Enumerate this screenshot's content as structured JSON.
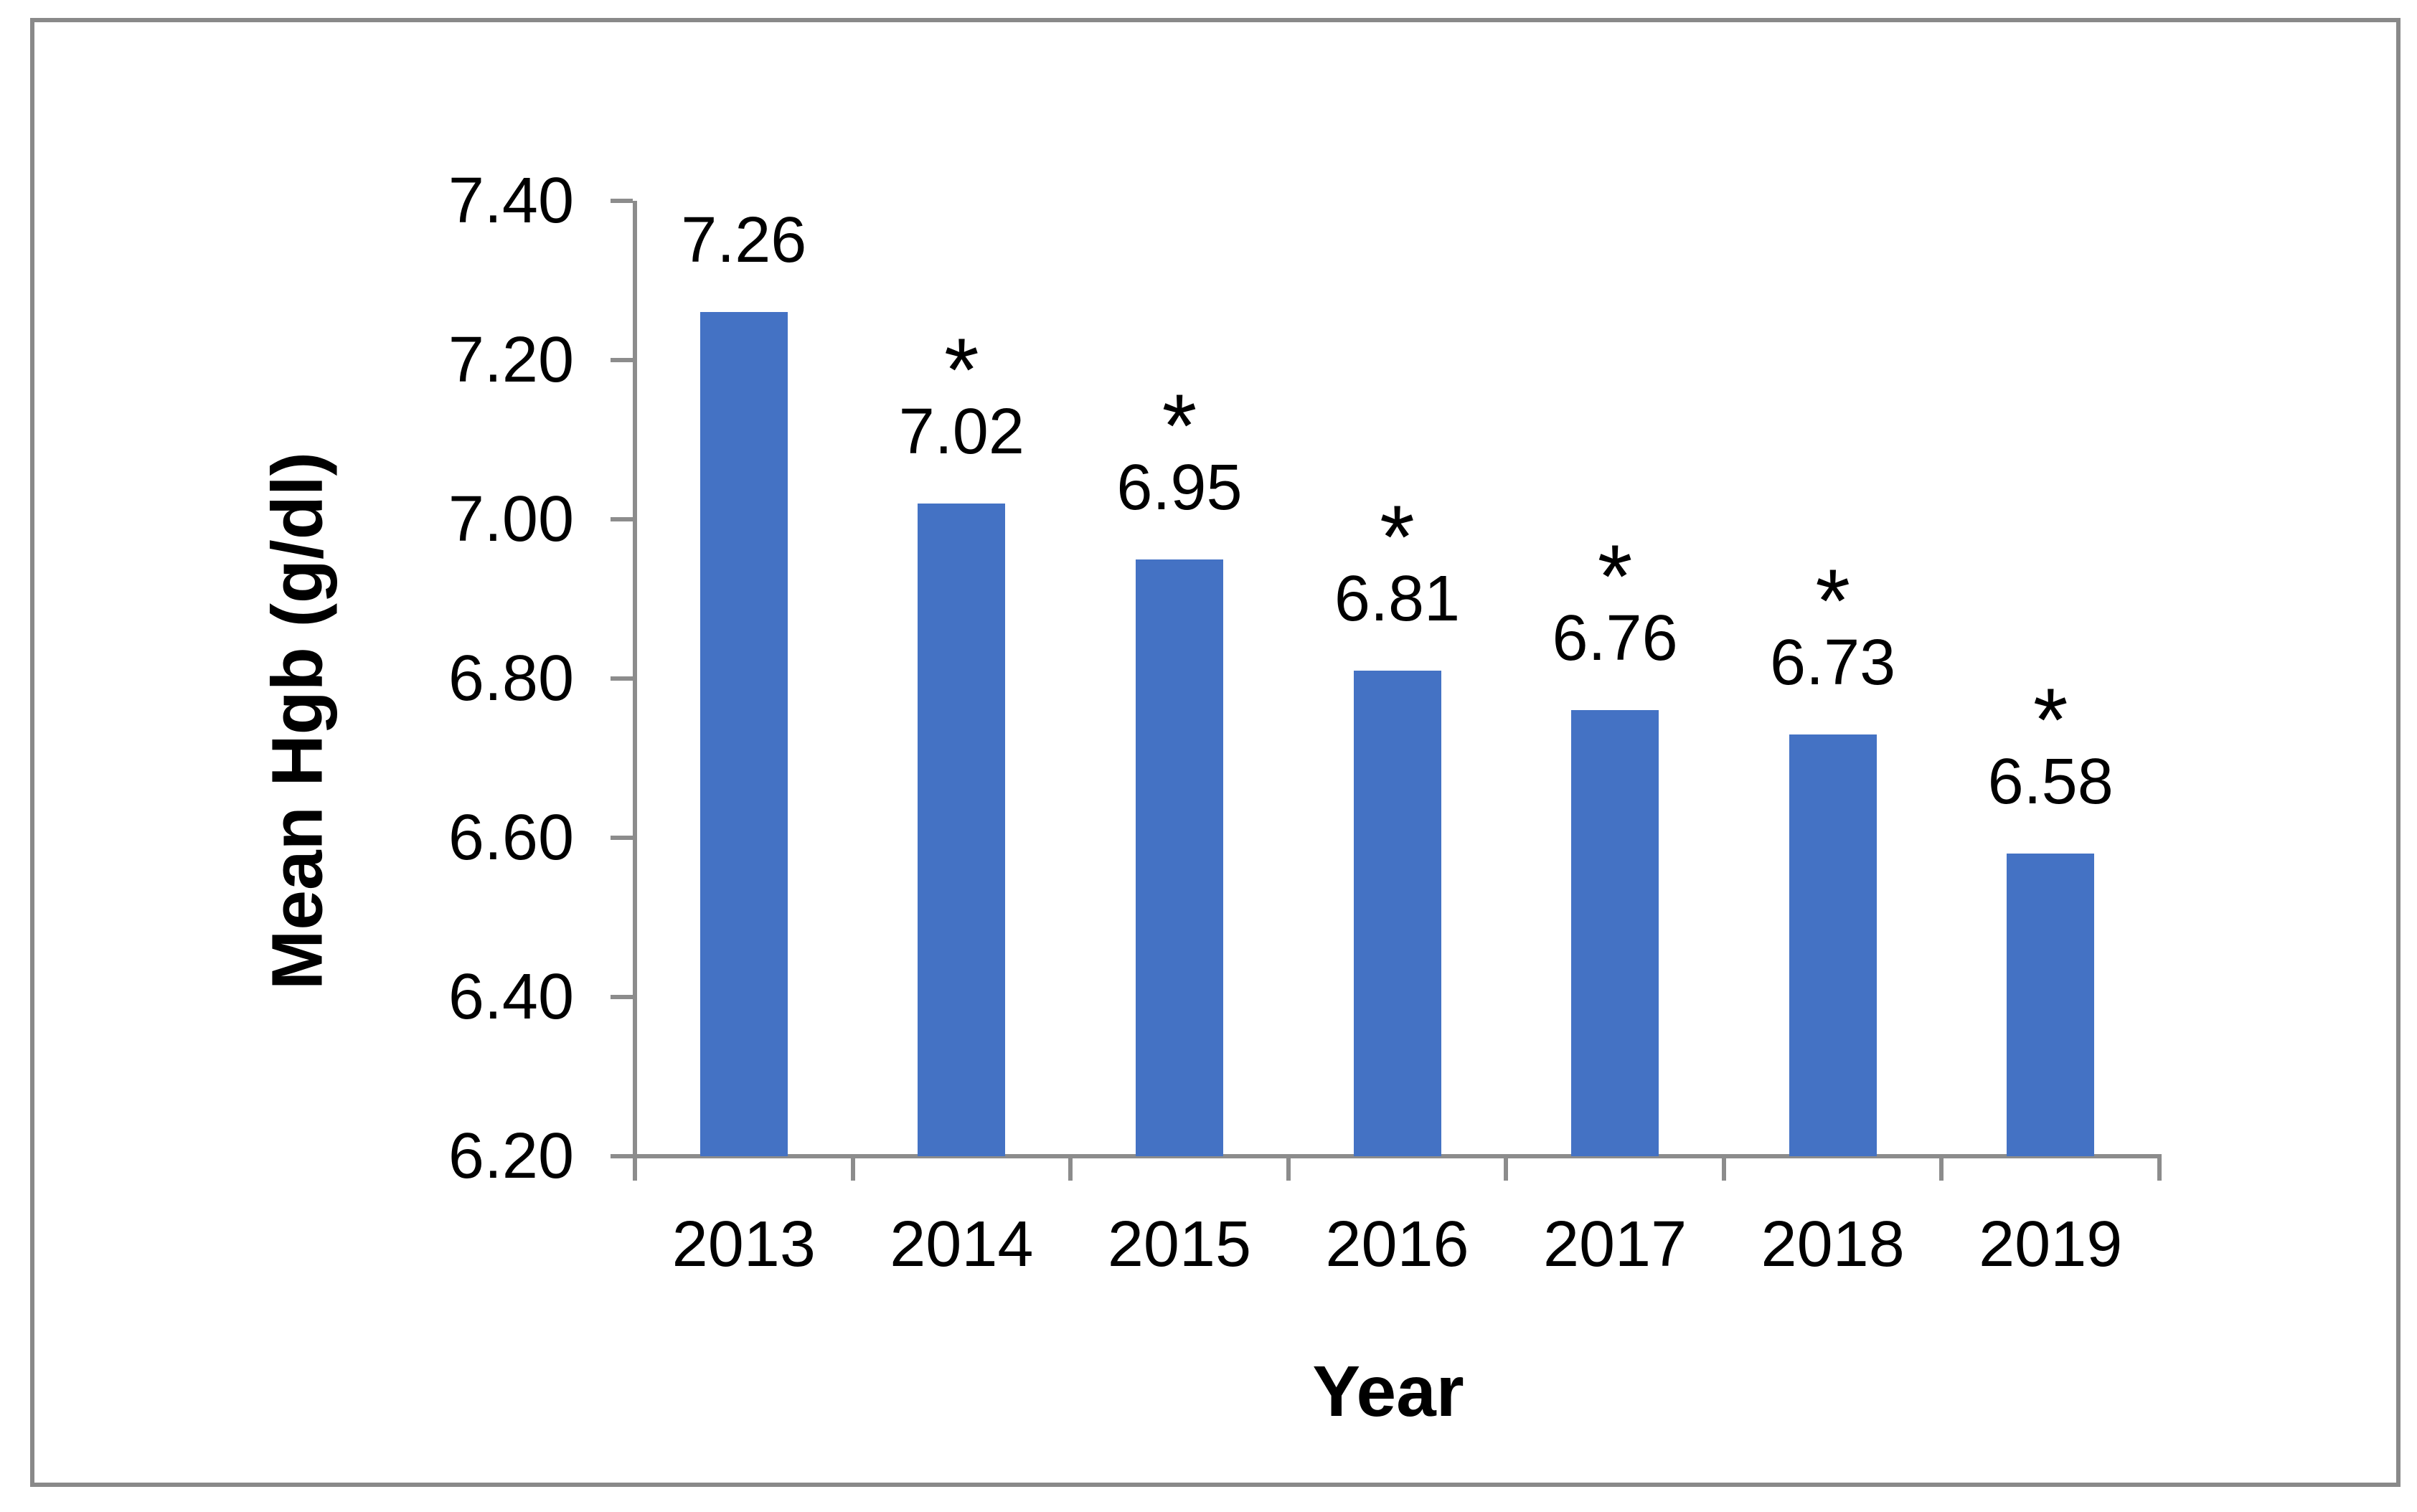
{
  "chart_data": {
    "type": "bar",
    "title": "",
    "xlabel": "Year",
    "ylabel": "Mean Hgb (g/dl)",
    "categories": [
      "2013",
      "2014",
      "2015",
      "2016",
      "2017",
      "2018",
      "2019"
    ],
    "values": [
      7.26,
      7.02,
      6.95,
      6.81,
      6.76,
      6.73,
      6.58
    ],
    "value_labels": [
      "7.26",
      "7.02",
      "6.95",
      "6.81",
      "6.76",
      "6.73",
      "6.58"
    ],
    "significance_markers": [
      false,
      true,
      true,
      true,
      true,
      true,
      true
    ],
    "significance_symbol": "*",
    "ylim": [
      6.2,
      7.4
    ],
    "y_tick_step": 0.2,
    "y_tick_labels": [
      "6.20",
      "6.40",
      "6.60",
      "6.80",
      "7.00",
      "7.20",
      "7.40"
    ],
    "grid": false,
    "legend": null,
    "bar_color": "#4472C4",
    "axis_color": "#8C8C8C",
    "frame_color": "#898989",
    "text_color": "#000000"
  }
}
